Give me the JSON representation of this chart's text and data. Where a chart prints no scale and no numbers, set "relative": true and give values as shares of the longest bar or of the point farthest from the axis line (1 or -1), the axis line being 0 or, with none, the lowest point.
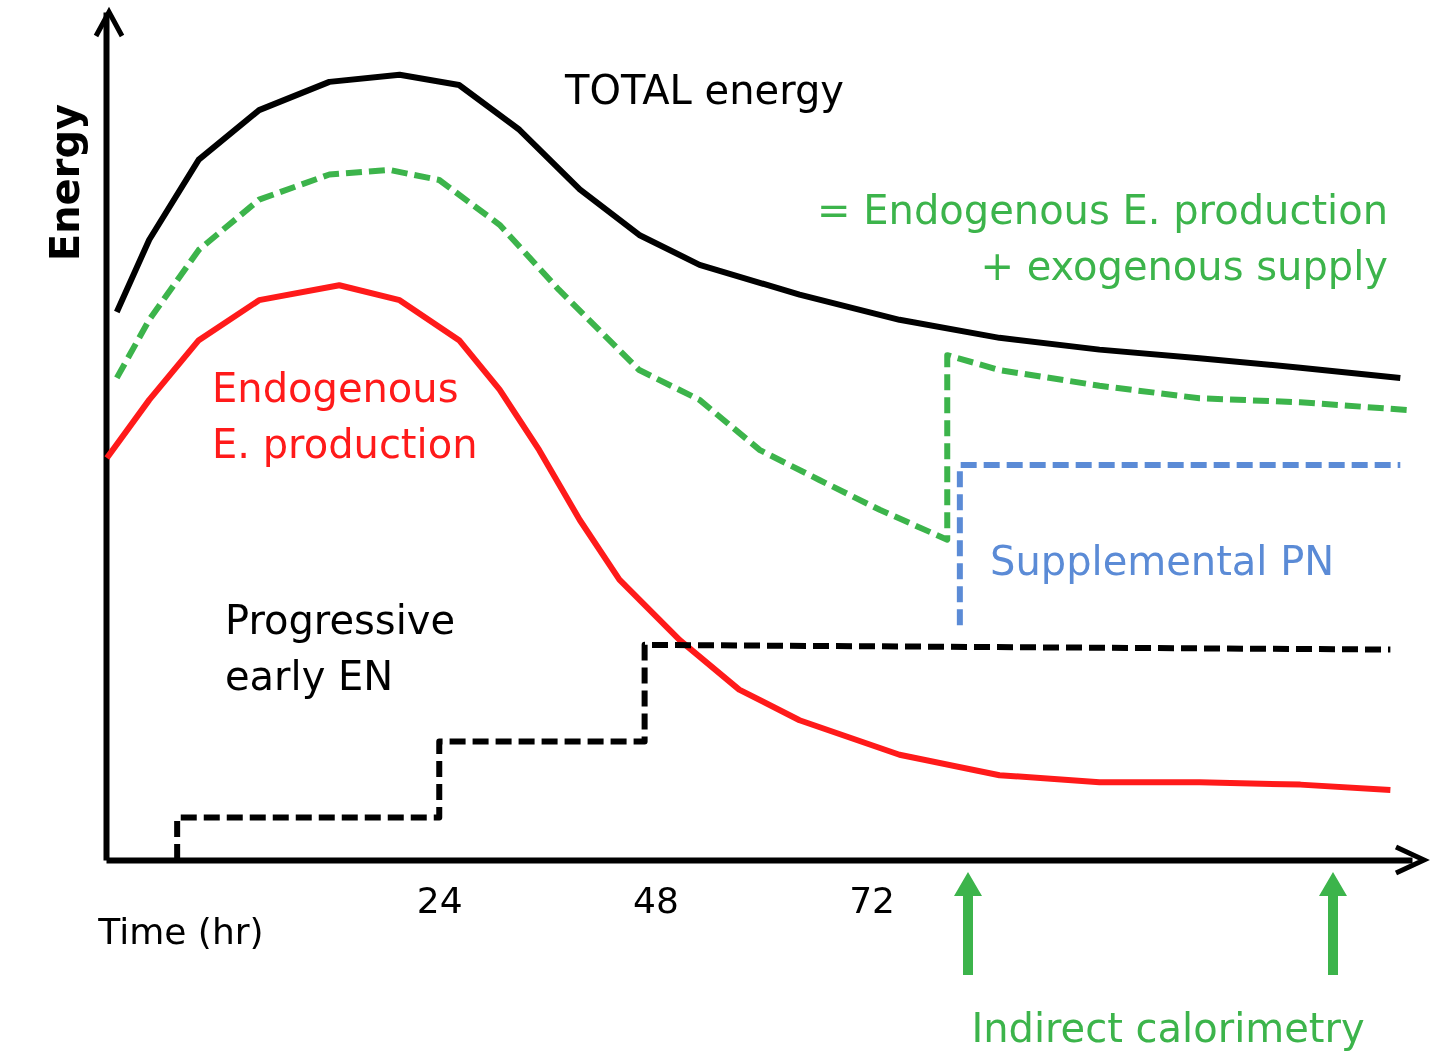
{
  "chart_data": {
    "type": "line",
    "relative": true,
    "ylabel": "Energy",
    "xlabel": "Time (hr)",
    "xlim": [
      -13,
      132
    ],
    "xticks": [
      24,
      48,
      72
    ],
    "grid": false,
    "marker": "none",
    "series": [
      {
        "name": "TOTAL energy",
        "color": "#000000",
        "line_style": "solid",
        "x": [
          -11.8,
          -8.2,
          -2.7,
          4,
          11.8,
          19.6,
          26.2,
          32.9,
          39.6,
          46.2,
          52.9,
          64,
          75.1,
          86.2,
          97.3,
          108.4,
          119.6,
          130.7
        ],
        "values": [
          0.698,
          0.79,
          0.892,
          0.955,
          0.991,
          1.0,
          0.987,
          0.93,
          0.854,
          0.796,
          0.758,
          0.72,
          0.688,
          0.665,
          0.65,
          0.639,
          0.627,
          0.614
        ]
      },
      {
        "name": "= Endogenous E. production + exogenous supply",
        "color": "#3cb44b",
        "line_style": "dashed",
        "x": [
          -11.8,
          -8.2,
          -2.7,
          4,
          11.8,
          18.4,
          24,
          30.7,
          37.3,
          46.2,
          52.9,
          59.6,
          66.2,
          72.9,
          80.4,
          80.4,
          86.2,
          97.3,
          108.4,
          119.6,
          131.6
        ],
        "values": [
          0.614,
          0.688,
          0.777,
          0.841,
          0.873,
          0.879,
          0.866,
          0.809,
          0.726,
          0.624,
          0.586,
          0.522,
          0.484,
          0.446,
          0.408,
          0.643,
          0.624,
          0.604,
          0.588,
          0.583,
          0.573
        ]
      },
      {
        "name": "Endogenous E. production",
        "color": "#ff1a1a",
        "line_style": "solid",
        "x": [
          -12.9,
          -8.2,
          -2.7,
          4,
          12.9,
          19.6,
          26.2,
          30.7,
          35.1,
          39.6,
          44,
          50.7,
          57.3,
          64,
          75.1,
          86.2,
          97.3,
          108.4,
          119.6,
          129.6
        ],
        "values": [
          0.512,
          0.586,
          0.662,
          0.713,
          0.732,
          0.713,
          0.662,
          0.599,
          0.522,
          0.433,
          0.357,
          0.28,
          0.217,
          0.178,
          0.134,
          0.108,
          0.099,
          0.099,
          0.096,
          0.089
        ]
      },
      {
        "name": "Supplemental PN",
        "color": "#5b8bd6",
        "line_style": "dashed",
        "x": [
          81.8,
          81.8,
          130.7
        ],
        "values": [
          0.299,
          0.503,
          0.503
        ]
      },
      {
        "name": "Progressive early EN",
        "color": "#000000",
        "line_style": "dashed",
        "x": [
          -5.1,
          -5.1,
          24,
          24,
          46.8,
          46.8,
          129.6
        ],
        "values": [
          0,
          0.054,
          0.054,
          0.151,
          0.151,
          0.274,
          0.268
        ]
      }
    ],
    "annotations": [
      "Indirect calorimetry"
    ]
  }
}
